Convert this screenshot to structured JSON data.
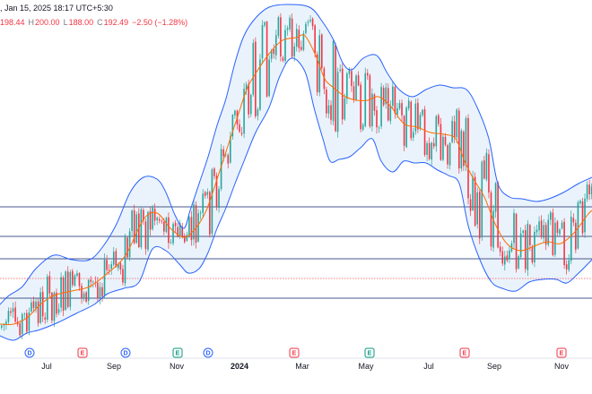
{
  "header": {
    "datetime": ", Jan 15, 2025 18:17 UTC+5:30",
    "open_value": "198.44",
    "high_label": "H",
    "high_value": "200.00",
    "low_label": "L",
    "low_value": "188.00",
    "close_label": "C",
    "close_value": "192.49",
    "change": "−2.50 (−1.28%)"
  },
  "colors": {
    "up": "#26a69a",
    "down": "#f23645",
    "band_line": "#2962ff",
    "band_fill": "#e3effa",
    "middle_line": "#ff6d00",
    "horizontal_lines": "#4a5a8c",
    "dotted_line": "#f77c80"
  },
  "time_axis": {
    "labels": [
      "Jul",
      "Sep",
      "Nov",
      "2024",
      "Mar",
      "May",
      "Jul",
      "Sep",
      "Nov"
    ],
    "bold_label": "2024"
  },
  "event_badges": [
    {
      "type": "dividend",
      "letter": "D",
      "icon": "dividend-badge-icon"
    },
    {
      "type": "earnings",
      "letter": "E",
      "icon": "earnings-badge-icon"
    },
    {
      "type": "dividend",
      "letter": "D",
      "icon": "dividend-badge-icon"
    },
    {
      "type": "earnings",
      "letter": "E",
      "icon": "earnings-badge-icon"
    },
    {
      "type": "dividend",
      "letter": "D",
      "icon": "dividend-badge-icon"
    },
    {
      "type": "earnings",
      "letter": "E",
      "icon": "earnings-badge-icon"
    },
    {
      "type": "earnings",
      "letter": "E",
      "icon": "earnings-badge-icon"
    },
    {
      "type": "earnings",
      "letter": "E",
      "icon": "earnings-badge-icon"
    },
    {
      "type": "earnings",
      "letter": "E",
      "icon": "earnings-badge-icon"
    }
  ],
  "chart_data": {
    "type": "candlestick",
    "indicators": [
      "Bollinger Bands"
    ],
    "horizontal_lines": 4,
    "dotted_lines": 1
  }
}
